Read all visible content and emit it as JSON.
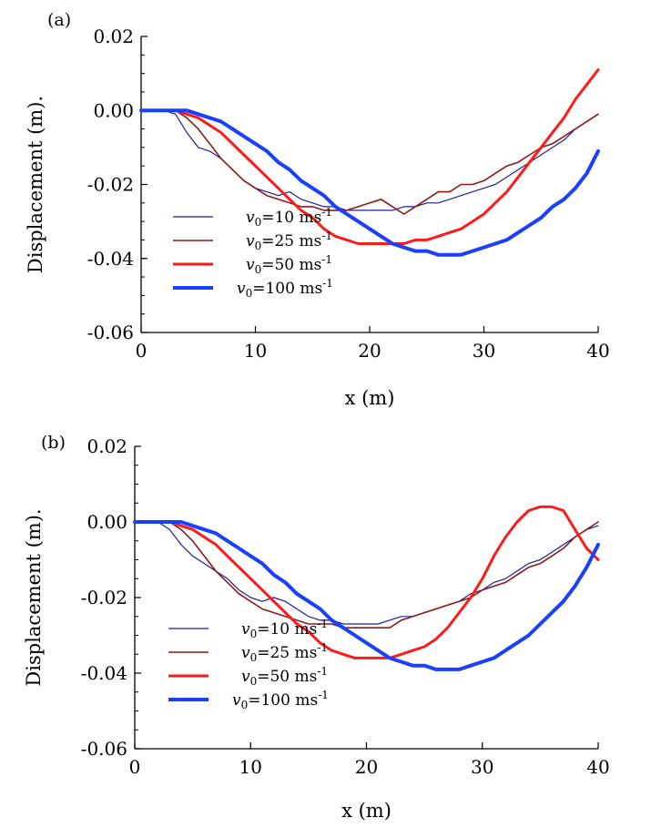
{
  "chart_data": [
    {
      "type": "line",
      "panel_label": "(a)",
      "xlabel": "x (m)",
      "ylabel": "Displacement (m).",
      "xlim": [
        0,
        40
      ],
      "ylim": [
        -0.06,
        0.02
      ],
      "xticks": [
        0,
        10,
        20,
        30,
        40
      ],
      "xtick_labels": [
        "0",
        "10",
        "20",
        "30",
        "40"
      ],
      "yticks": [
        0.02,
        0.0,
        -0.02,
        -0.04,
        -0.06
      ],
      "ytick_labels": [
        "0.02",
        "0.00",
        "-0.02",
        "-0.04",
        "-0.06"
      ],
      "grid": false,
      "legend_position": "lower-left",
      "series": [
        {
          "name": "v0=10 ms-1",
          "legend_var": "v",
          "legend_sub": "0",
          "legend_rest": "=10 ms",
          "legend_sup": "-1",
          "color": "#1f1f9a",
          "width": 1.2,
          "x": [
            0,
            1,
            2,
            3,
            4,
            5,
            6,
            7,
            8,
            9,
            10,
            11,
            12,
            13,
            14,
            15,
            16,
            17,
            18,
            19,
            20,
            21,
            22,
            23,
            24,
            25,
            26,
            27,
            28,
            29,
            30,
            31,
            32,
            33,
            34,
            35,
            36,
            37,
            38,
            39,
            40
          ],
          "y": [
            0.0,
            0.0,
            0.0,
            -0.001,
            -0.006,
            -0.01,
            -0.011,
            -0.013,
            -0.016,
            -0.019,
            -0.021,
            -0.022,
            -0.023,
            -0.022,
            -0.024,
            -0.025,
            -0.026,
            -0.026,
            -0.027,
            -0.027,
            -0.027,
            -0.027,
            -0.027,
            -0.026,
            -0.026,
            -0.025,
            -0.025,
            -0.024,
            -0.023,
            -0.022,
            -0.021,
            -0.02,
            -0.018,
            -0.016,
            -0.014,
            -0.012,
            -0.01,
            -0.008,
            -0.005,
            -0.003,
            -0.001
          ]
        },
        {
          "name": "v0=25 ms-1",
          "legend_var": "v",
          "legend_sub": "0",
          "legend_rest": "=25 ms",
          "legend_sup": "-1",
          "color": "#8b1a1a",
          "width": 1.6,
          "x": [
            0,
            1,
            2,
            3,
            4,
            5,
            6,
            7,
            8,
            9,
            10,
            11,
            12,
            13,
            14,
            15,
            16,
            17,
            18,
            19,
            20,
            21,
            22,
            23,
            24,
            25,
            26,
            27,
            28,
            29,
            30,
            31,
            32,
            33,
            34,
            35,
            36,
            37,
            38,
            39,
            40
          ],
          "y": [
            0.0,
            0.0,
            0.0,
            0.0,
            -0.002,
            -0.005,
            -0.009,
            -0.013,
            -0.016,
            -0.019,
            -0.021,
            -0.023,
            -0.024,
            -0.025,
            -0.026,
            -0.026,
            -0.027,
            -0.027,
            -0.027,
            -0.026,
            -0.025,
            -0.024,
            -0.026,
            -0.028,
            -0.026,
            -0.024,
            -0.022,
            -0.022,
            -0.02,
            -0.02,
            -0.019,
            -0.017,
            -0.015,
            -0.014,
            -0.012,
            -0.01,
            -0.009,
            -0.007,
            -0.005,
            -0.003,
            -0.001
          ]
        },
        {
          "name": "v0=50 ms-1",
          "legend_var": "v",
          "legend_sub": "0",
          "legend_rest": "=50 ms",
          "legend_sup": "-1",
          "color": "#ff1a1a",
          "width": 3,
          "x": [
            0,
            1,
            2,
            3,
            4,
            5,
            6,
            7,
            8,
            9,
            10,
            11,
            12,
            13,
            14,
            15,
            16,
            17,
            18,
            19,
            20,
            21,
            22,
            23,
            24,
            25,
            26,
            27,
            28,
            29,
            30,
            31,
            32,
            33,
            34,
            35,
            36,
            37,
            38,
            39,
            40
          ],
          "y": [
            0.0,
            0.0,
            0.0,
            0.0,
            -0.001,
            -0.002,
            -0.004,
            -0.006,
            -0.009,
            -0.012,
            -0.015,
            -0.018,
            -0.021,
            -0.024,
            -0.027,
            -0.029,
            -0.032,
            -0.034,
            -0.035,
            -0.036,
            -0.036,
            -0.036,
            -0.036,
            -0.036,
            -0.035,
            -0.035,
            -0.034,
            -0.033,
            -0.032,
            -0.03,
            -0.028,
            -0.025,
            -0.022,
            -0.018,
            -0.014,
            -0.01,
            -0.006,
            -0.002,
            0.003,
            0.007,
            0.011
          ]
        },
        {
          "name": "v0=100 ms-1",
          "legend_var": "v",
          "legend_sub": "0",
          "legend_rest": "=100 ms",
          "legend_sup": "-1",
          "color": "#1a3fff",
          "width": 4,
          "x": [
            0,
            1,
            2,
            3,
            4,
            5,
            6,
            7,
            8,
            9,
            10,
            11,
            12,
            13,
            14,
            15,
            16,
            17,
            18,
            19,
            20,
            21,
            22,
            23,
            24,
            25,
            26,
            27,
            28,
            29,
            30,
            31,
            32,
            33,
            34,
            35,
            36,
            37,
            38,
            39,
            40
          ],
          "y": [
            0.0,
            0.0,
            0.0,
            0.0,
            0.0,
            -0.001,
            -0.002,
            -0.003,
            -0.005,
            -0.007,
            -0.009,
            -0.011,
            -0.014,
            -0.016,
            -0.019,
            -0.021,
            -0.023,
            -0.026,
            -0.028,
            -0.03,
            -0.032,
            -0.034,
            -0.036,
            -0.037,
            -0.038,
            -0.038,
            -0.039,
            -0.039,
            -0.039,
            -0.038,
            -0.037,
            -0.036,
            -0.035,
            -0.033,
            -0.031,
            -0.029,
            -0.026,
            -0.024,
            -0.021,
            -0.017,
            -0.011
          ]
        }
      ]
    },
    {
      "type": "line",
      "panel_label": "(b)",
      "xlabel": "x (m)",
      "ylabel": "Displacement (m).",
      "xlim": [
        0,
        40
      ],
      "ylim": [
        -0.06,
        0.02
      ],
      "xticks": [
        0,
        10,
        20,
        30,
        40
      ],
      "xtick_labels": [
        "0",
        "10",
        "20",
        "30",
        "40"
      ],
      "yticks": [
        0.02,
        0.0,
        -0.02,
        -0.04,
        -0.06
      ],
      "ytick_labels": [
        "0.02",
        "0.00",
        "-0.02",
        "-0.04",
        "-0.06"
      ],
      "grid": false,
      "legend_position": "lower-left",
      "series": [
        {
          "name": "v0=10 ms-1",
          "legend_var": "v",
          "legend_sub": "0",
          "legend_rest": "=10 ms",
          "legend_sup": "-1",
          "color": "#1f1f9a",
          "width": 1.2,
          "x": [
            0,
            1,
            2,
            3,
            4,
            5,
            6,
            7,
            8,
            9,
            10,
            11,
            12,
            13,
            14,
            15,
            16,
            17,
            18,
            19,
            20,
            21,
            22,
            23,
            24,
            25,
            26,
            27,
            28,
            29,
            30,
            31,
            32,
            33,
            34,
            35,
            36,
            37,
            38,
            39,
            40
          ],
          "y": [
            0.0,
            0.0,
            0.0,
            -0.002,
            -0.006,
            -0.009,
            -0.011,
            -0.013,
            -0.015,
            -0.018,
            -0.02,
            -0.021,
            -0.02,
            -0.021,
            -0.023,
            -0.025,
            -0.026,
            -0.026,
            -0.027,
            -0.027,
            -0.027,
            -0.027,
            -0.026,
            -0.025,
            -0.025,
            -0.024,
            -0.023,
            -0.022,
            -0.021,
            -0.019,
            -0.018,
            -0.016,
            -0.015,
            -0.013,
            -0.011,
            -0.01,
            -0.008,
            -0.006,
            -0.004,
            -0.002,
            -0.001
          ]
        },
        {
          "name": "v0=25 ms-1",
          "legend_var": "v",
          "legend_sub": "0",
          "legend_rest": "=25 ms",
          "legend_sup": "-1",
          "color": "#8b1a1a",
          "width": 1.6,
          "x": [
            0,
            1,
            2,
            3,
            4,
            5,
            6,
            7,
            8,
            9,
            10,
            11,
            12,
            13,
            14,
            15,
            16,
            17,
            18,
            19,
            20,
            21,
            22,
            23,
            24,
            25,
            26,
            27,
            28,
            29,
            30,
            31,
            32,
            33,
            34,
            35,
            36,
            37,
            38,
            39,
            40
          ],
          "y": [
            0.0,
            0.0,
            0.0,
            0.0,
            -0.002,
            -0.005,
            -0.009,
            -0.013,
            -0.016,
            -0.019,
            -0.021,
            -0.023,
            -0.024,
            -0.025,
            -0.026,
            -0.027,
            -0.027,
            -0.027,
            -0.028,
            -0.028,
            -0.028,
            -0.028,
            -0.028,
            -0.026,
            -0.025,
            -0.024,
            -0.023,
            -0.022,
            -0.021,
            -0.02,
            -0.018,
            -0.017,
            -0.016,
            -0.014,
            -0.012,
            -0.011,
            -0.009,
            -0.007,
            -0.004,
            -0.002,
            0.0
          ]
        },
        {
          "name": "v0=50 ms-1",
          "legend_var": "v",
          "legend_sub": "0",
          "legend_rest": "=50 ms",
          "legend_sup": "-1",
          "color": "#ff1a1a",
          "width": 3,
          "x": [
            0,
            1,
            2,
            3,
            4,
            5,
            6,
            7,
            8,
            9,
            10,
            11,
            12,
            13,
            14,
            15,
            16,
            17,
            18,
            19,
            20,
            21,
            22,
            23,
            24,
            25,
            26,
            27,
            28,
            29,
            30,
            31,
            32,
            33,
            34,
            35,
            36,
            37,
            38,
            39,
            40
          ],
          "y": [
            0.0,
            0.0,
            0.0,
            0.0,
            -0.001,
            -0.002,
            -0.004,
            -0.006,
            -0.009,
            -0.012,
            -0.015,
            -0.018,
            -0.021,
            -0.024,
            -0.027,
            -0.029,
            -0.032,
            -0.034,
            -0.035,
            -0.036,
            -0.036,
            -0.036,
            -0.036,
            -0.035,
            -0.034,
            -0.033,
            -0.031,
            -0.028,
            -0.024,
            -0.02,
            -0.015,
            -0.009,
            -0.004,
            0.0,
            0.003,
            0.004,
            0.004,
            0.003,
            -0.002,
            -0.007,
            -0.01
          ]
        },
        {
          "name": "v0=100 ms-1",
          "legend_var": "v",
          "legend_sub": "0",
          "legend_rest": "=100 ms",
          "legend_sup": "-1",
          "color": "#1a3fff",
          "width": 4,
          "x": [
            0,
            1,
            2,
            3,
            4,
            5,
            6,
            7,
            8,
            9,
            10,
            11,
            12,
            13,
            14,
            15,
            16,
            17,
            18,
            19,
            20,
            21,
            22,
            23,
            24,
            25,
            26,
            27,
            28,
            29,
            30,
            31,
            32,
            33,
            34,
            35,
            36,
            37,
            38,
            39,
            40
          ],
          "y": [
            0.0,
            0.0,
            0.0,
            0.0,
            0.0,
            -0.001,
            -0.002,
            -0.003,
            -0.005,
            -0.007,
            -0.009,
            -0.011,
            -0.014,
            -0.016,
            -0.019,
            -0.021,
            -0.023,
            -0.026,
            -0.028,
            -0.03,
            -0.032,
            -0.034,
            -0.036,
            -0.037,
            -0.038,
            -0.038,
            -0.039,
            -0.039,
            -0.039,
            -0.038,
            -0.037,
            -0.036,
            -0.034,
            -0.032,
            -0.03,
            -0.027,
            -0.024,
            -0.021,
            -0.017,
            -0.012,
            -0.006
          ]
        }
      ]
    }
  ]
}
